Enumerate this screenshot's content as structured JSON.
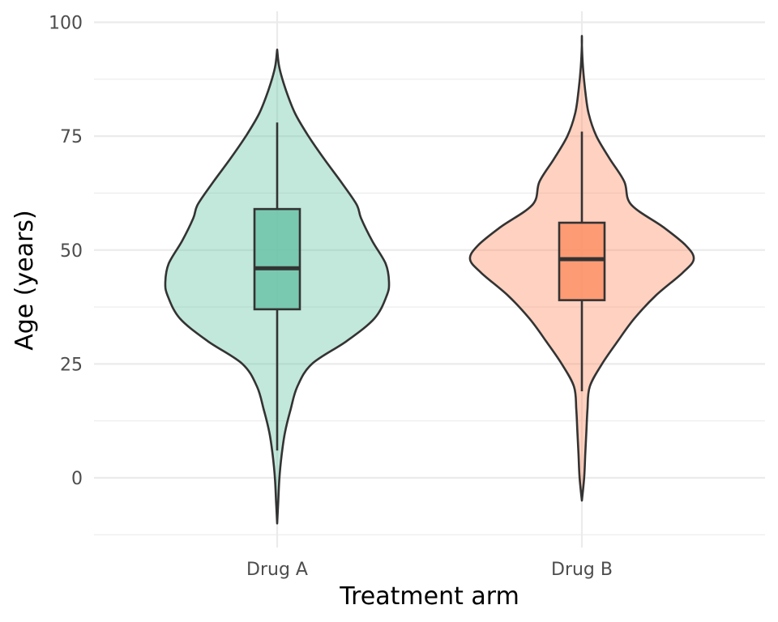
{
  "chart_data": {
    "type": "violin",
    "title": "",
    "xlabel": "Treatment arm",
    "ylabel": "Age (years)",
    "ylim": [
      -13,
      101
    ],
    "yticks": [
      0,
      25,
      50,
      75,
      100
    ],
    "grid": true,
    "legend": "none",
    "categories": [
      "Drug A",
      "Drug B"
    ],
    "series": [
      {
        "category": "Drug A",
        "color": "#66c2a5",
        "box": {
          "whisker_low": 6,
          "q1": 37,
          "median": 46,
          "q3": 59,
          "whisker_high": 78
        },
        "range": [
          -10,
          94
        ],
        "density": [
          [
            -10,
            0.0
          ],
          [
            -5,
            0.01
          ],
          [
            0,
            0.02
          ],
          [
            5,
            0.04
          ],
          [
            10,
            0.07
          ],
          [
            15,
            0.12
          ],
          [
            20,
            0.18
          ],
          [
            25,
            0.31
          ],
          [
            30,
            0.62
          ],
          [
            35,
            0.87
          ],
          [
            40,
            0.98
          ],
          [
            43,
            1.0
          ],
          [
            47,
            0.97
          ],
          [
            52,
            0.85
          ],
          [
            57,
            0.75
          ],
          [
            60,
            0.71
          ],
          [
            65,
            0.57
          ],
          [
            70,
            0.42
          ],
          [
            75,
            0.28
          ],
          [
            80,
            0.16
          ],
          [
            85,
            0.08
          ],
          [
            90,
            0.02
          ],
          [
            94,
            0.0
          ]
        ]
      },
      {
        "category": "Drug B",
        "color": "#fc8d62",
        "box": {
          "whisker_low": 19,
          "q1": 39,
          "median": 48,
          "q3": 56,
          "whisker_high": 76
        },
        "range": [
          -5,
          97
        ],
        "density": [
          [
            -5,
            0.0
          ],
          [
            0,
            0.02
          ],
          [
            5,
            0.03
          ],
          [
            10,
            0.04
          ],
          [
            15,
            0.05
          ],
          [
            20,
            0.07
          ],
          [
            25,
            0.18
          ],
          [
            30,
            0.32
          ],
          [
            35,
            0.47
          ],
          [
            40,
            0.66
          ],
          [
            45,
            0.9
          ],
          [
            48,
            1.0
          ],
          [
            51,
            0.93
          ],
          [
            55,
            0.73
          ],
          [
            60,
            0.44
          ],
          [
            65,
            0.38
          ],
          [
            70,
            0.25
          ],
          [
            75,
            0.13
          ],
          [
            80,
            0.06
          ],
          [
            85,
            0.03
          ],
          [
            90,
            0.01
          ],
          [
            95,
            0.0
          ],
          [
            97,
            0.0
          ]
        ]
      }
    ]
  }
}
